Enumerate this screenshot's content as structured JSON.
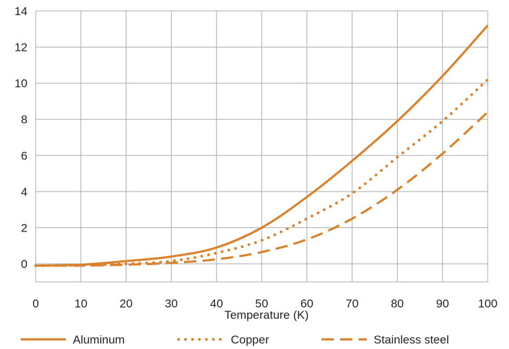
{
  "chart_data": {
    "type": "line",
    "xlabel": "Temperature (K)",
    "ylabel": "",
    "xlim": [
      0,
      100
    ],
    "ylim": [
      0,
      14
    ],
    "x_ticks": [
      0,
      10,
      20,
      30,
      40,
      50,
      60,
      70,
      80,
      90,
      100
    ],
    "y_ticks": [
      0,
      2,
      4,
      6,
      8,
      10,
      12,
      14
    ],
    "grid": true,
    "legend_position": "bottom",
    "x": [
      0,
      10,
      20,
      30,
      40,
      50,
      60,
      70,
      80,
      90,
      100
    ],
    "series": [
      {
        "name": "Aluminum",
        "style": "solid",
        "color": "#d9822b",
        "values": [
          -0.1,
          -0.05,
          0.15,
          0.4,
          0.9,
          2.0,
          3.7,
          5.7,
          7.9,
          10.4,
          13.2
        ]
      },
      {
        "name": "Copper",
        "style": "dotted",
        "color": "#d9822b",
        "values": [
          -0.1,
          -0.08,
          0.0,
          0.15,
          0.6,
          1.3,
          2.5,
          3.9,
          5.9,
          7.9,
          10.2
        ]
      },
      {
        "name": "Stainless steel",
        "style": "dashed",
        "color": "#d9822b",
        "values": [
          -0.1,
          -0.1,
          -0.05,
          0.05,
          0.25,
          0.65,
          1.35,
          2.5,
          4.1,
          6.1,
          8.4
        ]
      }
    ]
  }
}
